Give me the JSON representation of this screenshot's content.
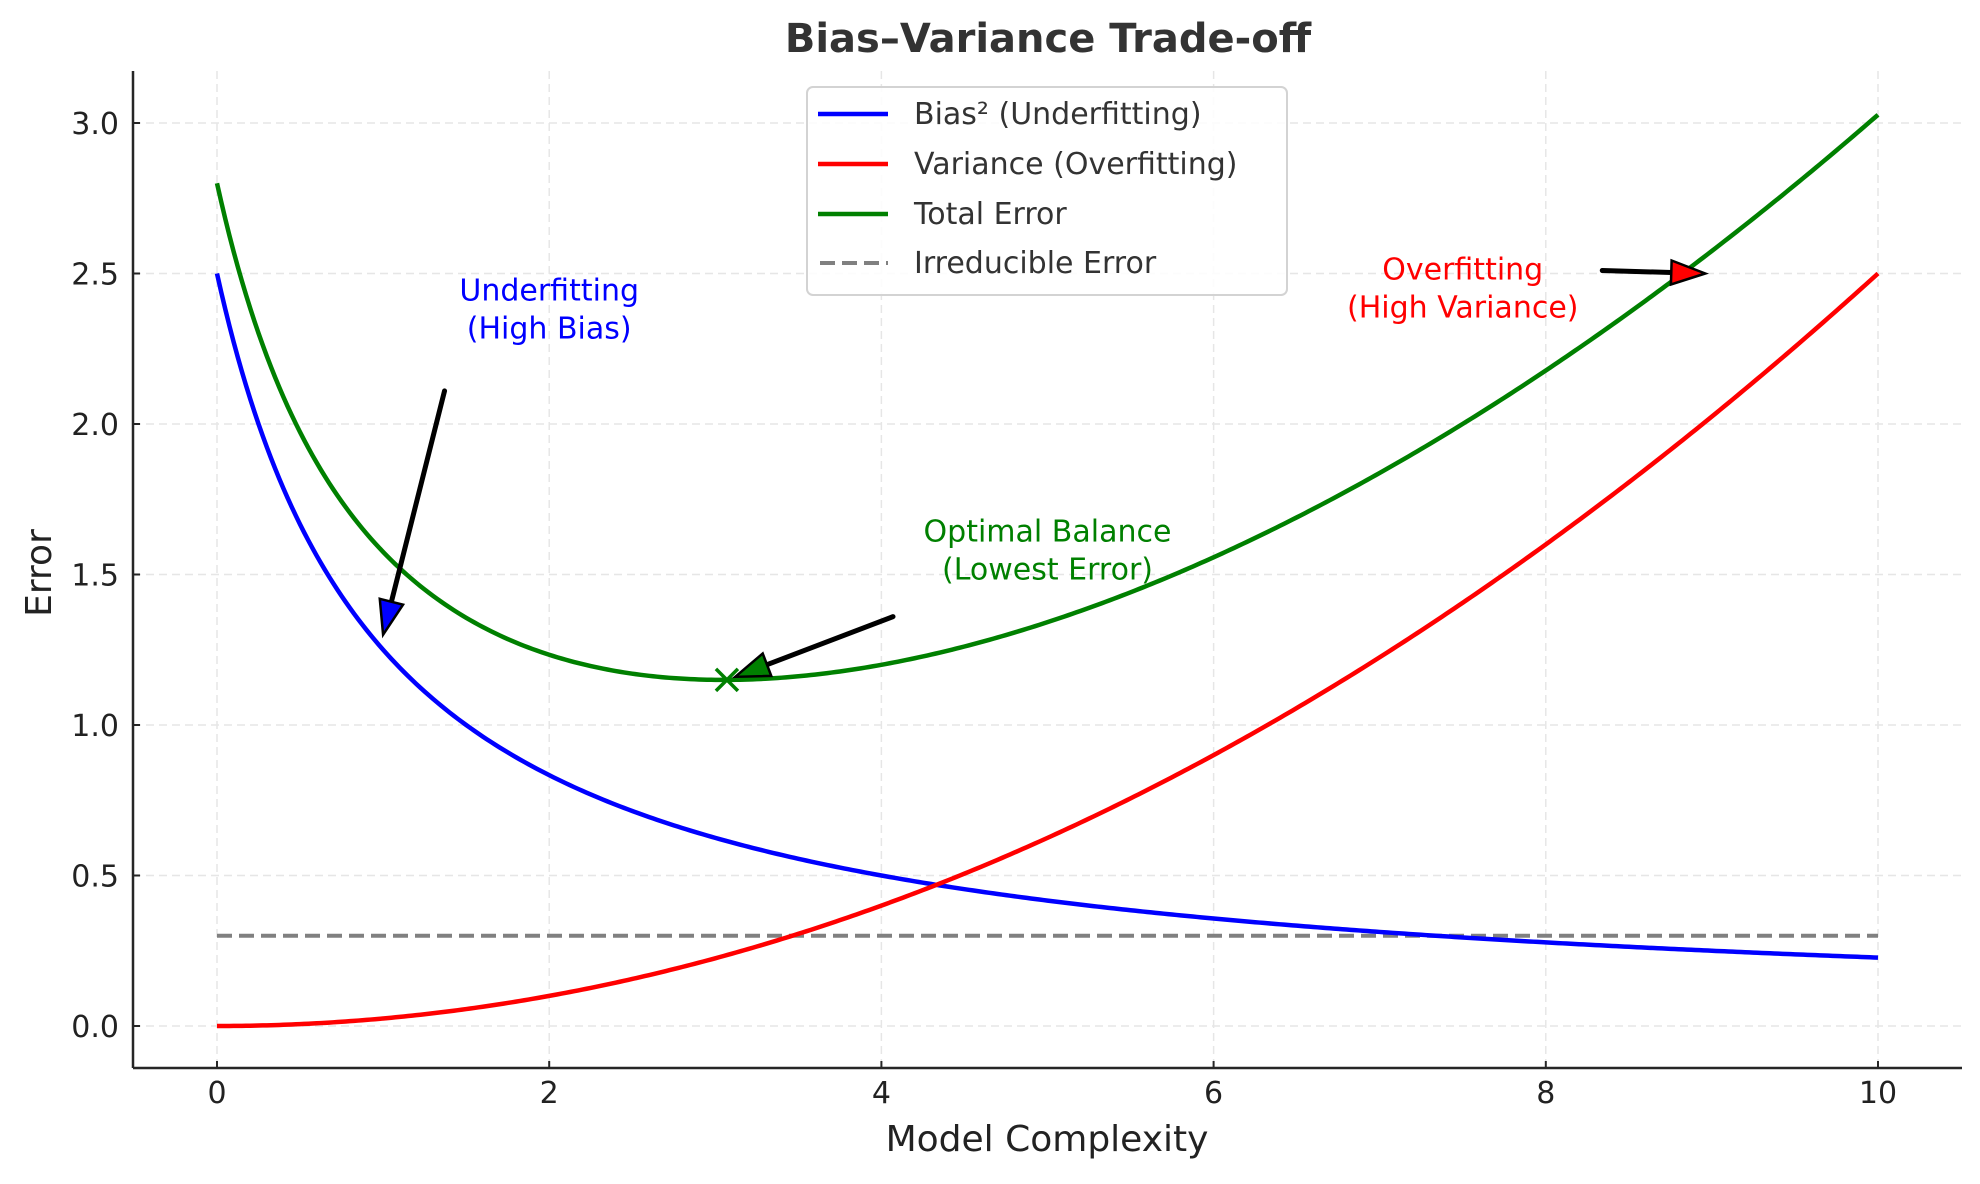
{
  "chart_data": {
    "type": "line",
    "title": "Bias–Variance Trade-off",
    "xlabel": "Model Complexity",
    "ylabel": "Error",
    "xlim": [
      -0.5,
      10.5
    ],
    "ylim": [
      -0.15,
      3.18
    ],
    "xticks": [
      0,
      2,
      4,
      6,
      8,
      10
    ],
    "xtick_labels": [
      "0",
      "2",
      "4",
      "6",
      "8",
      "10"
    ],
    "yticks": [
      0.0,
      0.5,
      1.0,
      1.5,
      2.0,
      2.5,
      3.0
    ],
    "ytick_labels": [
      "0.0",
      "0.5",
      "1.0",
      "1.5",
      "2.0",
      "2.5",
      "3.0"
    ],
    "grid": true,
    "legend_position": "upper center",
    "x": [
      0,
      0.5,
      1,
      1.5,
      2,
      2.5,
      3,
      3.5,
      4,
      4.5,
      5,
      5.5,
      6,
      6.5,
      7,
      7.5,
      8,
      8.5,
      9,
      9.5,
      10
    ],
    "series": [
      {
        "name": "Bias² (Underfitting)",
        "color": "#0000ff",
        "style": "solid",
        "values": [
          2.5,
          1.667,
          1.25,
          1.0,
          0.833,
          0.714,
          0.625,
          0.556,
          0.5,
          0.455,
          0.417,
          0.385,
          0.357,
          0.333,
          0.313,
          0.294,
          0.278,
          0.263,
          0.25,
          0.238,
          0.227
        ]
      },
      {
        "name": "Variance (Overfitting)",
        "color": "#ff0000",
        "style": "solid",
        "values": [
          0.0,
          0.006,
          0.025,
          0.056,
          0.1,
          0.156,
          0.225,
          0.306,
          0.4,
          0.506,
          0.625,
          0.756,
          0.9,
          1.056,
          1.225,
          1.406,
          1.6,
          1.806,
          2.025,
          2.256,
          2.5
        ]
      },
      {
        "name": "Total Error",
        "color": "#008000",
        "style": "solid",
        "values": [
          2.8,
          1.973,
          1.575,
          1.356,
          1.233,
          1.17,
          1.15,
          1.162,
          1.2,
          1.261,
          1.342,
          1.441,
          1.557,
          1.689,
          1.838,
          2.0,
          2.178,
          2.369,
          2.575,
          2.794,
          3.027
        ]
      },
      {
        "name": "Irreducible Error",
        "color": "#808080",
        "style": "dashed",
        "values": [
          0.3,
          0.3,
          0.3,
          0.3,
          0.3,
          0.3,
          0.3,
          0.3,
          0.3,
          0.3,
          0.3,
          0.3,
          0.3,
          0.3,
          0.3,
          0.3,
          0.3,
          0.3,
          0.3,
          0.3,
          0.3
        ]
      }
    ],
    "markers": [
      {
        "name": "optimal-point",
        "x": 3.07,
        "y": 1.15,
        "symbol": "x",
        "color": "#008000"
      }
    ],
    "annotations": [
      {
        "name": "underfitting",
        "lines": [
          "Underfitting",
          "(High Bias)"
        ],
        "color": "#0000ff",
        "text_x": 2.0,
        "text_y": 2.35,
        "arrow_from": [
          1.37,
          2.11
        ],
        "arrow_to": [
          1.0,
          1.3
        ]
      },
      {
        "name": "optimal-balance",
        "lines": [
          "Optimal Balance",
          "(Lowest Error)"
        ],
        "color": "#008000",
        "text_x": 5.0,
        "text_y": 1.55,
        "arrow_from": [
          4.07,
          1.36
        ],
        "arrow_to": [
          3.12,
          1.16
        ]
      },
      {
        "name": "overfitting",
        "lines": [
          "Overfitting",
          "(High Variance)"
        ],
        "color": "#ff0000",
        "text_x": 7.5,
        "text_y": 2.42,
        "arrow_from": [
          8.34,
          2.51
        ],
        "arrow_to": [
          8.96,
          2.5
        ]
      }
    ]
  }
}
